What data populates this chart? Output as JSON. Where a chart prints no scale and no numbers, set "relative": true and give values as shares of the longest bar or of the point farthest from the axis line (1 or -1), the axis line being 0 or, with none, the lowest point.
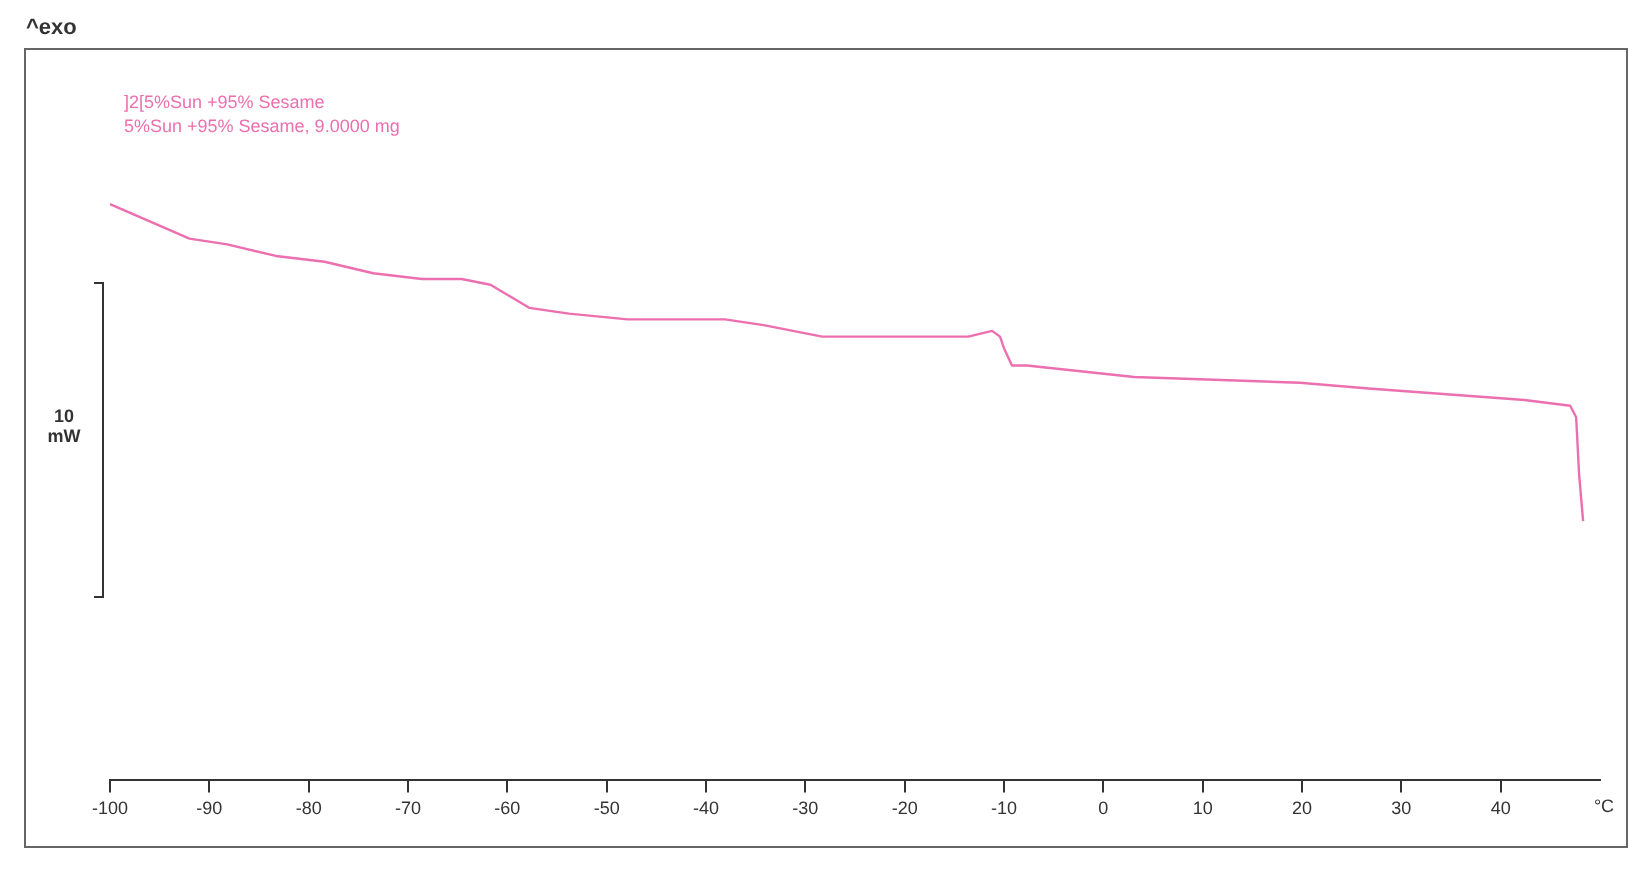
{
  "chart_data": {
    "type": "line",
    "relative": true,
    "xlabel": "°C",
    "x": [
      -100,
      -96,
      -92,
      -88.2,
      -83.3,
      -78.4,
      -73.5,
      -68.6,
      -64.6,
      -61.7,
      -57.8,
      -53.8,
      -47.9,
      -38.1,
      -34.2,
      -28.3,
      -20.4,
      -13.6,
      -11.2,
      -10.4,
      -10,
      -9.2,
      -7.7,
      3.1,
      19.8,
      26.7,
      42.4,
      47,
      47.6,
      47.9,
      48.3
    ],
    "values": [
      1,
      0.97,
      0.94,
      0.93,
      0.91,
      0.9,
      0.88,
      0.87,
      0.87,
      0.86,
      0.82,
      0.81,
      0.8,
      0.8,
      0.79,
      0.77,
      0.77,
      0.77,
      0.78,
      0.77,
      0.75,
      0.72,
      0.72,
      0.7,
      0.69,
      0.68,
      0.66,
      0.65,
      0.63,
      0.53,
      0.45
    ],
    "color": "#ec6fb0",
    "marker": "none",
    "line_style": "solid",
    "xlim": [
      -100,
      50
    ],
    "xticks": [
      -100,
      -90,
      -80,
      -70,
      -60,
      -50,
      -40,
      -30,
      -20,
      -10,
      0,
      10,
      20,
      30,
      40
    ],
    "annotations": [
      "^exo",
      "]2[5%Sun +95% Sesame",
      "5%Sun +95% Sesame, 9.0000 mg",
      "10 mW"
    ]
  }
}
